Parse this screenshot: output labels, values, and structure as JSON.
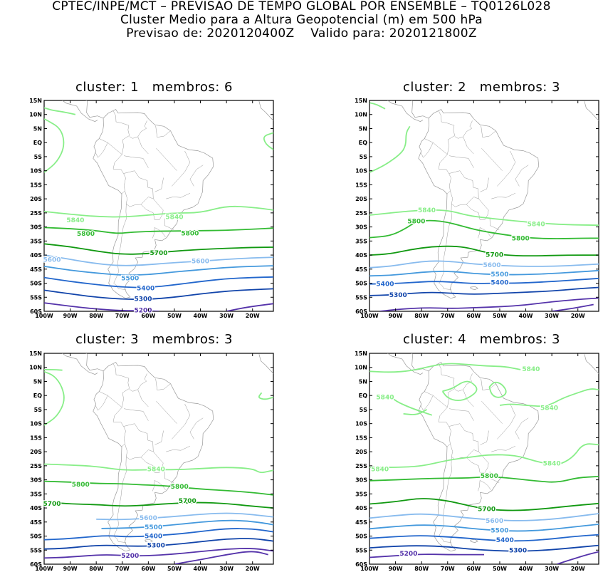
{
  "header": {
    "line1": "CPTEC/INPE/MCT – PREVISAO DE TEMPO GLOBAL POR ENSEMBLE – TQ0126L028",
    "line2": "Cluster Medio para a Altura Geopotencial (m) em 500 hPa",
    "line3": "Previsao de: 2020120400Z    Valido para: 2020121800Z"
  },
  "axes": {
    "lat_labels": [
      "15N",
      "10N",
      "5N",
      "EQ",
      "5S",
      "10S",
      "15S",
      "20S",
      "25S",
      "30S",
      "35S",
      "40S",
      "45S",
      "50S",
      "55S",
      "60S"
    ],
    "lon_labels": [
      "100W",
      "90W",
      "80W",
      "70W",
      "60W",
      "50W",
      "40W",
      "30W",
      "20W"
    ]
  },
  "colors": {
    "c5840": "#88ee88",
    "c5800": "#33bb33",
    "c5700": "#119911",
    "c5600": "#88bbee",
    "c5500": "#4499dd",
    "c5400": "#2266cc",
    "c5300": "#1144aa",
    "c5200": "#5533aa",
    "coast": "#999999"
  },
  "panels": [
    {
      "title": "cluster: 1   membros: 6",
      "contour_labels": [
        {
          "text": "5840",
          "lon": -88,
          "lat": -27.6,
          "level": "c5840"
        },
        {
          "text": "5840",
          "lon": -50,
          "lat": -26.4,
          "level": "c5840"
        },
        {
          "text": "5800",
          "lon": -84,
          "lat": -32.4,
          "level": "c5800"
        },
        {
          "text": "5800",
          "lon": -44,
          "lat": -32.2,
          "level": "c5800"
        },
        {
          "text": "5700",
          "lon": -56,
          "lat": -39.2,
          "level": "c5700"
        },
        {
          "text": "5600",
          "lon": -97,
          "lat": -41.6,
          "level": "c5600"
        },
        {
          "text": "5600",
          "lon": -40,
          "lat": -42.2,
          "level": "c5600"
        },
        {
          "text": "5500",
          "lon": -67,
          "lat": -48.2,
          "level": "c5500"
        },
        {
          "text": "5400",
          "lon": -61,
          "lat": -51.8,
          "level": "c5400"
        },
        {
          "text": "5300",
          "lon": -62,
          "lat": -55.6,
          "level": "c5300"
        },
        {
          "text": "5200",
          "lon": -62,
          "lat": -59.6,
          "level": "c5200"
        }
      ]
    },
    {
      "title": "cluster: 2   membros: 3",
      "contour_labels": [
        {
          "text": "5840",
          "lon": -78,
          "lat": -24,
          "level": "c5840"
        },
        {
          "text": "5840",
          "lon": -36,
          "lat": -29,
          "level": "c5840"
        },
        {
          "text": "5800",
          "lon": -82,
          "lat": -28,
          "level": "c5800"
        },
        {
          "text": "5800",
          "lon": -42,
          "lat": -34,
          "level": "c5800"
        },
        {
          "text": "5700",
          "lon": -52,
          "lat": -39.8,
          "level": "c5700"
        },
        {
          "text": "5600",
          "lon": -53,
          "lat": -43.5,
          "level": "c5600"
        },
        {
          "text": "5500",
          "lon": -50,
          "lat": -46.8,
          "level": "c5500"
        },
        {
          "text": "5400",
          "lon": -94,
          "lat": -50.2,
          "level": "c5400"
        },
        {
          "text": "5400",
          "lon": -50,
          "lat": -49.8,
          "level": "c5400"
        },
        {
          "text": "5300",
          "lon": -89,
          "lat": -54.2,
          "level": "c5300"
        }
      ]
    },
    {
      "title": "cluster: 3   membros: 3",
      "contour_labels": [
        {
          "text": "5840",
          "lon": -57,
          "lat": -26.2,
          "level": "c5840"
        },
        {
          "text": "5800",
          "lon": -86,
          "lat": -31.6,
          "level": "c5800"
        },
        {
          "text": "5800",
          "lon": -48,
          "lat": -32.4,
          "level": "c5800"
        },
        {
          "text": "5700",
          "lon": -97,
          "lat": -38.4,
          "level": "c5700"
        },
        {
          "text": "5700",
          "lon": -45,
          "lat": -37.4,
          "level": "c5700"
        },
        {
          "text": "5600",
          "lon": -60,
          "lat": -43.5,
          "level": "c5600"
        },
        {
          "text": "5500",
          "lon": -58,
          "lat": -46.8,
          "level": "c5500"
        },
        {
          "text": "5400",
          "lon": -58,
          "lat": -50,
          "level": "c5400"
        },
        {
          "text": "5300",
          "lon": -57,
          "lat": -53.3,
          "level": "c5300"
        },
        {
          "text": "5200",
          "lon": -67,
          "lat": -57,
          "level": "c5200"
        }
      ]
    },
    {
      "title": "cluster: 4   membros: 3",
      "contour_labels": [
        {
          "text": "5840",
          "lon": -38,
          "lat": 9.4,
          "level": "c5840"
        },
        {
          "text": "5840",
          "lon": -94,
          "lat": -0.6,
          "level": "c5840"
        },
        {
          "text": "5840",
          "lon": -31,
          "lat": -4.4,
          "level": "c5840"
        },
        {
          "text": "5840",
          "lon": -96,
          "lat": -26.2,
          "level": "c5840"
        },
        {
          "text": "5840",
          "lon": -30,
          "lat": -24.2,
          "level": "c5840"
        },
        {
          "text": "5800",
          "lon": -54,
          "lat": -28.6,
          "level": "c5800"
        },
        {
          "text": "5700",
          "lon": -55,
          "lat": -40.4,
          "level": "c5700"
        },
        {
          "text": "5600",
          "lon": -52,
          "lat": -44.6,
          "level": "c5600"
        },
        {
          "text": "5500",
          "lon": -50,
          "lat": -48,
          "level": "c5500"
        },
        {
          "text": "5400",
          "lon": -48,
          "lat": -51.4,
          "level": "c5400"
        },
        {
          "text": "5300",
          "lon": -43,
          "lat": -55,
          "level": "c5300"
        },
        {
          "text": "5200",
          "lon": -85,
          "lat": -56.2,
          "level": "c5200"
        }
      ]
    }
  ]
}
